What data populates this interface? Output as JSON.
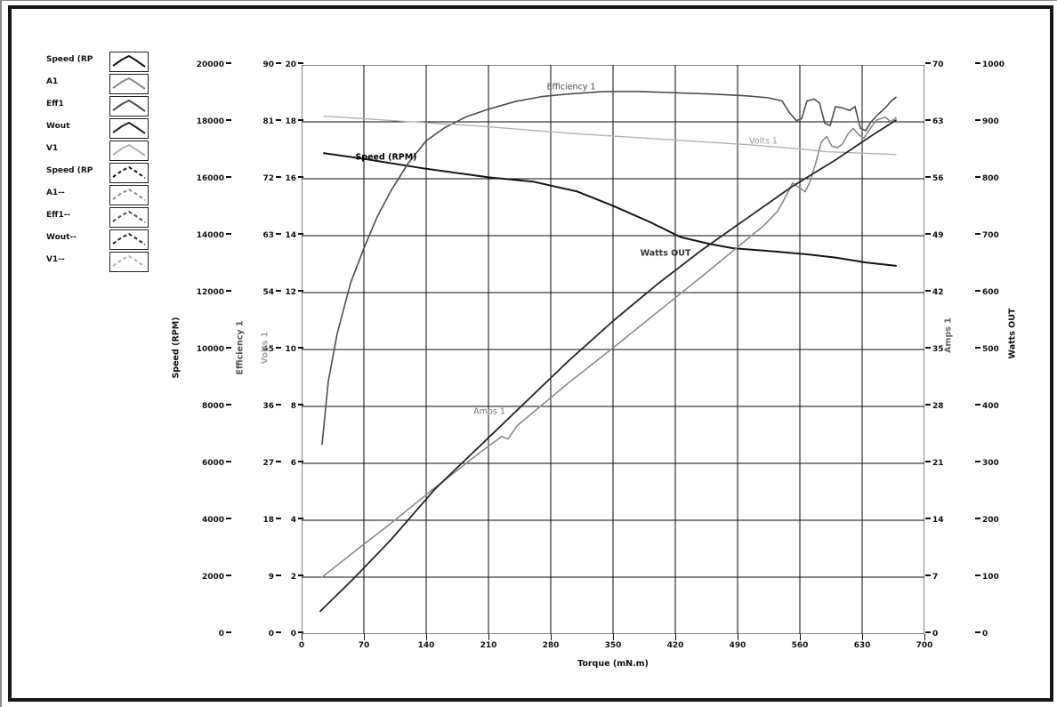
{
  "window": {
    "background": "#ffffff",
    "frame_color": "#161616"
  },
  "legend": {
    "items": [
      {
        "label": "Speed (RP",
        "color": "#151515",
        "dashed": false
      },
      {
        "label": "A1",
        "color": "#8a8a8a",
        "dashed": false
      },
      {
        "label": "Eff1",
        "color": "#4d4d4d",
        "dashed": false
      },
      {
        "label": "Wout",
        "color": "#262626",
        "dashed": false
      },
      {
        "label": "V1",
        "color": "#b3b3b3",
        "dashed": false
      },
      {
        "label": "Speed (RP",
        "color": "#151515",
        "dashed": true
      },
      {
        "label": "A1--",
        "color": "#8a8a8a",
        "dashed": true
      },
      {
        "label": "Eff1--",
        "color": "#4d4d4d",
        "dashed": true
      },
      {
        "label": "Wout--",
        "color": "#262626",
        "dashed": true
      },
      {
        "label": "V1--",
        "color": "#b3b3b3",
        "dashed": true
      }
    ]
  },
  "chart_data": {
    "type": "line",
    "title": "",
    "xlabel": "Torque (mN.m)",
    "grid": "on",
    "x_axis": {
      "min": 0,
      "max": 700,
      "ticks": [
        0,
        70,
        140,
        210,
        280,
        350,
        420,
        490,
        560,
        630,
        700
      ]
    },
    "y_axes": [
      {
        "id": "speed",
        "title": "Speed (RPM)",
        "side": "left",
        "min": 0,
        "max": 20000,
        "ticks": [
          0,
          2000,
          4000,
          6000,
          8000,
          10000,
          12000,
          14000,
          16000,
          18000,
          20000
        ],
        "color": "#111111"
      },
      {
        "id": "efficiency",
        "title": "Efficiency 1",
        "side": "left",
        "min": 0,
        "max": 90,
        "ticks": [
          0,
          9,
          18,
          27,
          36,
          45,
          54,
          63,
          72,
          81,
          90
        ],
        "color": "#555555"
      },
      {
        "id": "volts",
        "title": "Volts 1",
        "side": "left",
        "min": 0,
        "max": 20,
        "ticks": [
          0,
          2,
          4,
          6,
          8,
          10,
          12,
          14,
          16,
          18,
          20
        ],
        "color": "#a8a8a8"
      },
      {
        "id": "amps",
        "title": "Amps 1",
        "side": "right",
        "min": 0,
        "max": 70,
        "ticks": [
          0,
          7,
          14,
          21,
          28,
          35,
          42,
          49,
          56,
          63,
          70
        ],
        "color": "#666666"
      },
      {
        "id": "watts",
        "title": "Watts OUT",
        "side": "right",
        "min": 0,
        "max": 1000,
        "ticks": [
          0,
          100,
          200,
          300,
          400,
          500,
          600,
          700,
          800,
          900,
          1000
        ],
        "color": "#111111"
      }
    ],
    "series": [
      {
        "name": "Speed (RPM)",
        "axis": "speed",
        "color": "#151515",
        "width": 2,
        "points": [
          [
            25,
            16900
          ],
          [
            70,
            16700
          ],
          [
            140,
            16350
          ],
          [
            210,
            16050
          ],
          [
            260,
            15900
          ],
          [
            310,
            15550
          ],
          [
            350,
            15050
          ],
          [
            390,
            14500
          ],
          [
            426,
            13950
          ],
          [
            460,
            13700
          ],
          [
            485,
            13560
          ],
          [
            530,
            13450
          ],
          [
            566,
            13350
          ],
          [
            600,
            13230
          ],
          [
            634,
            13060
          ],
          [
            668,
            12940
          ]
        ]
      },
      {
        "name": "Efficiency 1",
        "axis": "efficiency",
        "color": "#4d4d4d",
        "width": 1.6,
        "points": [
          [
            23,
            30
          ],
          [
            30,
            40
          ],
          [
            40,
            47.5
          ],
          [
            55,
            55.5
          ],
          [
            70,
            61
          ],
          [
            85,
            66
          ],
          [
            100,
            70
          ],
          [
            120,
            74.5
          ],
          [
            140,
            78
          ],
          [
            160,
            80
          ],
          [
            185,
            81.8
          ],
          [
            210,
            83
          ],
          [
            240,
            84.2
          ],
          [
            270,
            85
          ],
          [
            300,
            85.4
          ],
          [
            340,
            85.8
          ],
          [
            380,
            85.8
          ],
          [
            420,
            85.6
          ],
          [
            460,
            85.4
          ],
          [
            500,
            85.1
          ],
          [
            525,
            84.8
          ],
          [
            540,
            84.3
          ],
          [
            548,
            82.5
          ],
          [
            556,
            81.2
          ],
          [
            562,
            81.5
          ],
          [
            568,
            84.3
          ],
          [
            576,
            84.6
          ],
          [
            582,
            84
          ],
          [
            588,
            80.8
          ],
          [
            594,
            80.4
          ],
          [
            600,
            83.4
          ],
          [
            608,
            83.2
          ],
          [
            616,
            82.8
          ],
          [
            622,
            83.4
          ],
          [
            628,
            80
          ],
          [
            634,
            79.6
          ],
          [
            640,
            81
          ],
          [
            648,
            82.2
          ],
          [
            656,
            83.2
          ],
          [
            662,
            84.2
          ],
          [
            668,
            84.9
          ]
        ]
      },
      {
        "name": "Volts 1",
        "axis": "volts",
        "color": "#b3b3b3",
        "width": 1.4,
        "points": [
          [
            25,
            18.2
          ],
          [
            100,
            18.05
          ],
          [
            200,
            17.85
          ],
          [
            300,
            17.6
          ],
          [
            400,
            17.4
          ],
          [
            500,
            17.2
          ],
          [
            560,
            17.05
          ],
          [
            590,
            16.95
          ],
          [
            630,
            16.9
          ],
          [
            668,
            16.85
          ]
        ]
      },
      {
        "name": "Amps 1",
        "axis": "amps",
        "color": "#8a8a8a",
        "width": 1.6,
        "points": [
          [
            23,
            7
          ],
          [
            60,
            10.2
          ],
          [
            100,
            13.6
          ],
          [
            150,
            18
          ],
          [
            200,
            22.3
          ],
          [
            225,
            24.3
          ],
          [
            232,
            24.0
          ],
          [
            242,
            25.6
          ],
          [
            300,
            30.9
          ],
          [
            350,
            35.2
          ],
          [
            400,
            39.6
          ],
          [
            450,
            44
          ],
          [
            500,
            48.5
          ],
          [
            520,
            50.3
          ],
          [
            535,
            52
          ],
          [
            545,
            54
          ],
          [
            552,
            55.5
          ],
          [
            558,
            55
          ],
          [
            566,
            54.4
          ],
          [
            572,
            55.8
          ],
          [
            578,
            58
          ],
          [
            584,
            60.5
          ],
          [
            590,
            61.2
          ],
          [
            596,
            60
          ],
          [
            602,
            59.8
          ],
          [
            608,
            60.3
          ],
          [
            614,
            61.5
          ],
          [
            620,
            62.2
          ],
          [
            626,
            61.4
          ],
          [
            632,
            61
          ],
          [
            638,
            62
          ],
          [
            646,
            63.2
          ],
          [
            656,
            63.6
          ],
          [
            662,
            63
          ],
          [
            668,
            63.5
          ]
        ]
      },
      {
        "name": "Watts OUT",
        "axis": "watts",
        "color": "#262626",
        "width": 1.8,
        "points": [
          [
            21,
            40
          ],
          [
            60,
            100
          ],
          [
            100,
            165
          ],
          [
            150,
            255
          ],
          [
            200,
            330
          ],
          [
            250,
            405
          ],
          [
            300,
            480
          ],
          [
            350,
            550
          ],
          [
            400,
            615
          ],
          [
            450,
            675
          ],
          [
            500,
            730
          ],
          [
            550,
            785
          ],
          [
            600,
            833
          ],
          [
            640,
            875
          ],
          [
            668,
            903
          ]
        ]
      }
    ],
    "curve_labels": [
      {
        "text": "Efficiency 1",
        "x": 303,
        "y": 25,
        "color": "#4d4d4d",
        "bold": false
      },
      {
        "text": "Speed (RPM)",
        "x": 95,
        "y": 104,
        "color": "#000000",
        "bold": true
      },
      {
        "text": "Volts 1",
        "x": 519,
        "y": 86,
        "color": "#9a9a9a",
        "bold": false
      },
      {
        "text": "Watts OUT",
        "x": 409,
        "y": 212,
        "color": "#333333",
        "bold": true
      },
      {
        "text": "Amps 1",
        "x": 211,
        "y": 390,
        "color": "#777777",
        "bold": false
      }
    ]
  }
}
